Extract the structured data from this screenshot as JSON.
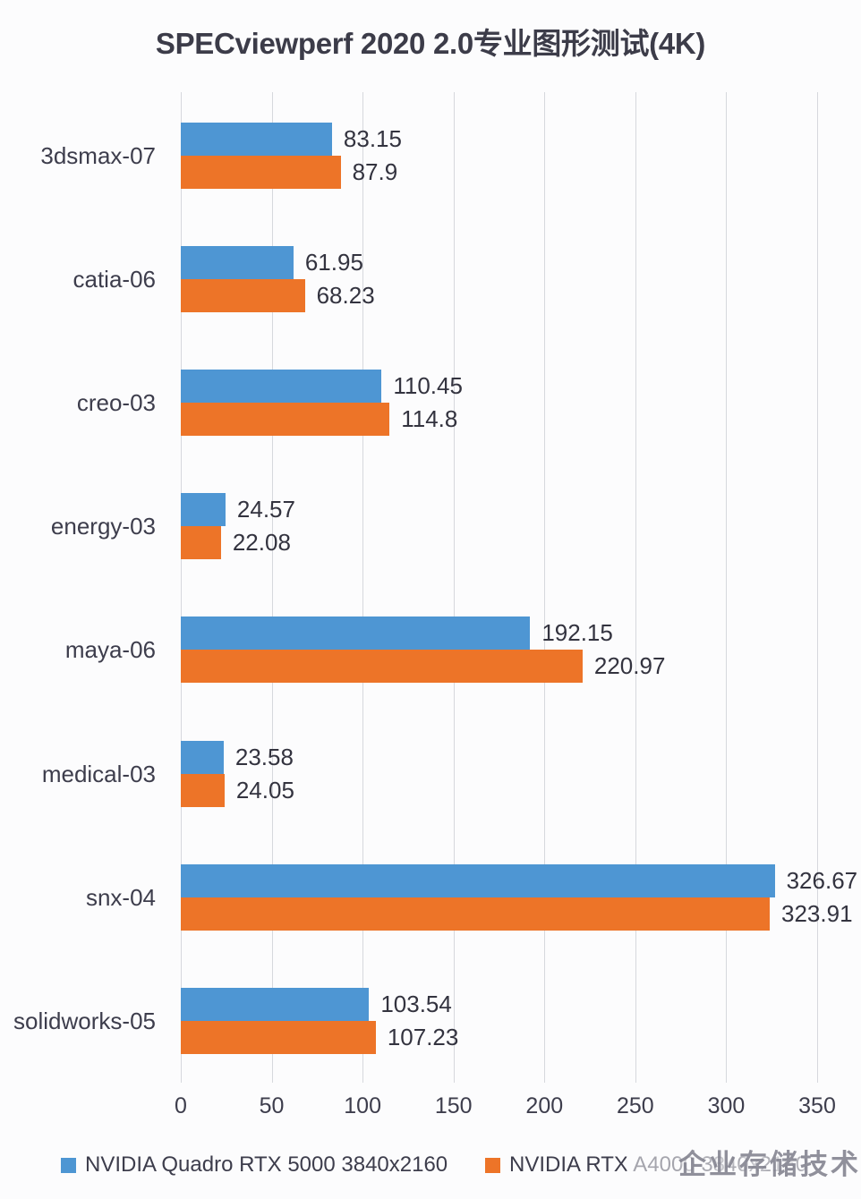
{
  "title": "SPECviewperf 2020 2.0专业图形测试(4K)",
  "watermark": "企业存储技术",
  "colors": {
    "series_blue": "#4E96D3",
    "series_orange": "#ED7428",
    "gridline": "#d6d8dd",
    "text": "#3d3d4c"
  },
  "legend": {
    "position": "bottom",
    "items": [
      {
        "label": "NVIDIA Quadro RTX 5000 3840x2160",
        "color": "#4E96D3"
      },
      {
        "label": "NVIDIA RTX A4000 3840x2160",
        "color": "#ED7428"
      }
    ]
  },
  "chart_data": {
    "type": "bar",
    "orientation": "horizontal",
    "title": "SPECviewperf 2020 2.0专业图形测试(4K)",
    "categories": [
      "3dsmax-07",
      "catia-06",
      "creo-03",
      "energy-03",
      "maya-06",
      "medical-03",
      "snx-04",
      "solidworks-05"
    ],
    "series": [
      {
        "name": "NVIDIA Quadro RTX 5000 3840x2160",
        "color": "#4E96D3",
        "values": [
          83.15,
          61.95,
          110.45,
          24.57,
          192.15,
          23.58,
          326.67,
          103.54
        ],
        "display_labels": [
          "83.15",
          "61.95",
          "110.45",
          "24.57",
          "192.15",
          "23.58",
          "326.67",
          "103.54"
        ]
      },
      {
        "name": "NVIDIA RTX A4000 3840x2160",
        "color": "#ED7428",
        "values": [
          87.9,
          68.23,
          114.8,
          22.08,
          220.97,
          24.05,
          323.91,
          107.23
        ],
        "display_labels": [
          "87.9",
          "68.23",
          "114.8",
          "22.08",
          "220.97",
          "24.05",
          "323.91",
          "107.23"
        ]
      }
    ],
    "xlabel": "",
    "ylabel": "",
    "xlim": [
      0,
      350
    ],
    "xticks": [
      0,
      50,
      100,
      150,
      200,
      250,
      300,
      350
    ],
    "grid": "vertical",
    "legend_position": "bottom",
    "value_labels": "outside-end"
  }
}
